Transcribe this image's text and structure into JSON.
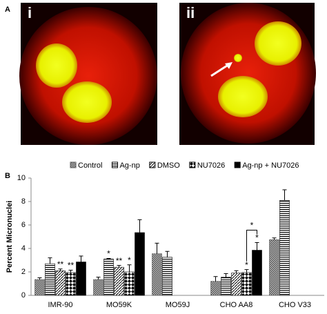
{
  "panels": {
    "a": "A",
    "b": "B",
    "image_1": "i",
    "image_2": "ii"
  },
  "chart_data": {
    "type": "bar",
    "y_label": "Percent Micronuclei",
    "categories": [
      "IMR-90",
      "MO59K",
      "MO59J",
      "CHO AA8",
      "CHO V33"
    ],
    "series": [
      {
        "name": "Control",
        "color": "#555555",
        "pattern": "dots",
        "values": [
          1.35,
          1.35,
          3.55,
          1.2,
          4.75
        ],
        "errors": [
          0.15,
          0.2,
          0.9,
          0.4,
          0.15
        ],
        "significance": [
          null,
          null,
          null,
          null,
          null
        ]
      },
      {
        "name": "Ag-np",
        "color": "#000000",
        "pattern": "hstripes",
        "values": [
          2.7,
          3.1,
          3.25,
          1.55,
          8.1
        ],
        "errors": [
          0.5,
          0.05,
          0.5,
          0.3,
          0.9
        ],
        "significance": [
          null,
          "*",
          null,
          null,
          null
        ]
      },
      {
        "name": "DMSO",
        "color": "#000000",
        "pattern": "diag",
        "values": [
          2.1,
          2.4,
          null,
          1.9,
          null
        ],
        "errors": [
          0.15,
          0.15,
          null,
          0.2,
          null
        ],
        "significance": [
          "**",
          "**",
          null,
          null,
          null
        ]
      },
      {
        "name": "NU7026",
        "color": "#000000",
        "pattern": "diamonds",
        "values": [
          1.95,
          2.0,
          null,
          1.95,
          null
        ],
        "errors": [
          0.2,
          0.6,
          null,
          0.25,
          null
        ],
        "significance": [
          "**",
          "*",
          null,
          "*",
          null
        ]
      },
      {
        "name": "Ag-np + NU7026",
        "color": "#000000",
        "pattern": "solid",
        "values": [
          2.85,
          5.35,
          null,
          3.85,
          null
        ],
        "errors": [
          0.5,
          1.1,
          null,
          0.65,
          null
        ],
        "significance": [
          null,
          null,
          null,
          "*",
          null
        ]
      }
    ],
    "bracket_label": "*",
    "ylim": [
      0,
      10
    ],
    "yticks": [
      0,
      2,
      4,
      6,
      8,
      10
    ],
    "grid": false
  }
}
